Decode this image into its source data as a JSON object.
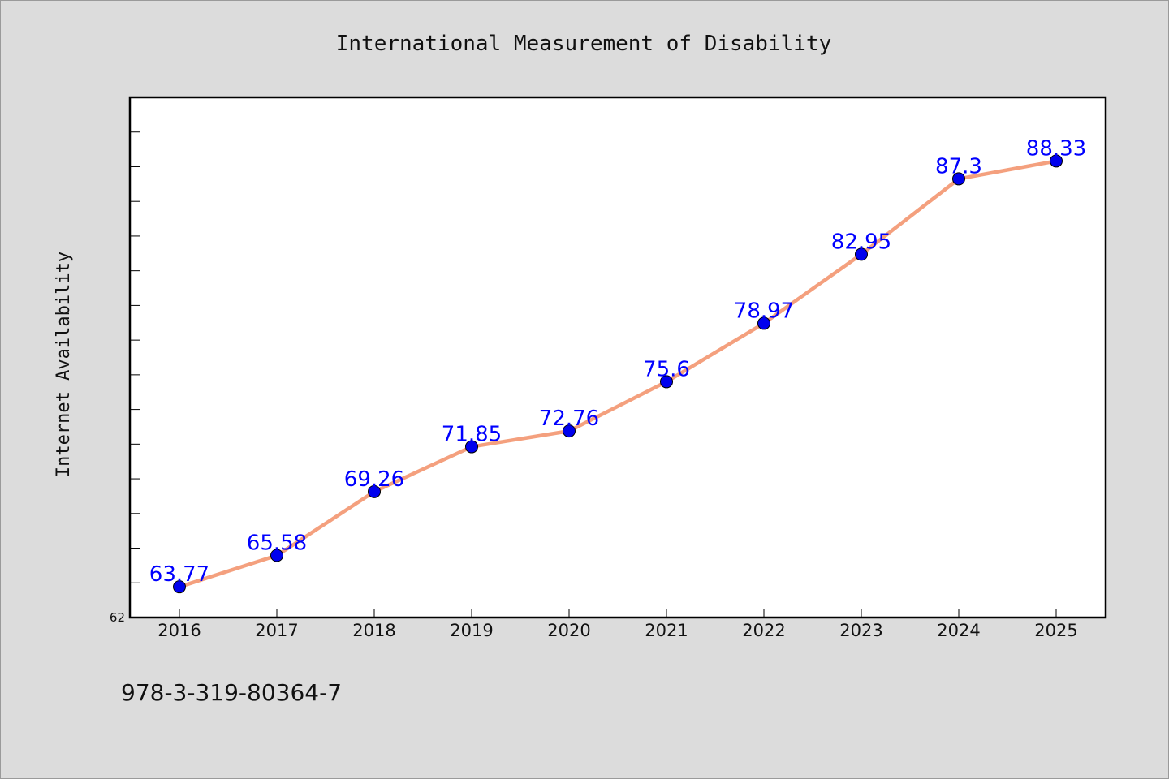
{
  "chart_data": {
    "type": "line",
    "title": "International Measurement of Disability",
    "xlabel": "",
    "ylabel": "Internet Availability",
    "categories": [
      "2016",
      "2017",
      "2018",
      "2019",
      "2020",
      "2021",
      "2022",
      "2023",
      "2024",
      "2025"
    ],
    "series": [
      {
        "name": "",
        "values": [
          63.77,
          65.58,
          69.26,
          71.85,
          72.76,
          75.6,
          78.97,
          82.95,
          87.3,
          88.33
        ],
        "labels": [
          "63.77",
          "65.58",
          "69.26",
          "71.85",
          "72.76",
          "75.6",
          "78.97",
          "82.95",
          "87.3",
          "88.33"
        ]
      }
    ],
    "ylim": [
      62,
      92
    ],
    "y_tick_labels": [
      "62"
    ],
    "grid": false,
    "legend": "none",
    "colors": {
      "line": "#f4a07e",
      "marker": "#0000ee",
      "label": "#0000ff",
      "plot_background": "#ffffff",
      "figure_background": "#dcdcdc"
    }
  },
  "footnote": "978-3-319-80364-7"
}
